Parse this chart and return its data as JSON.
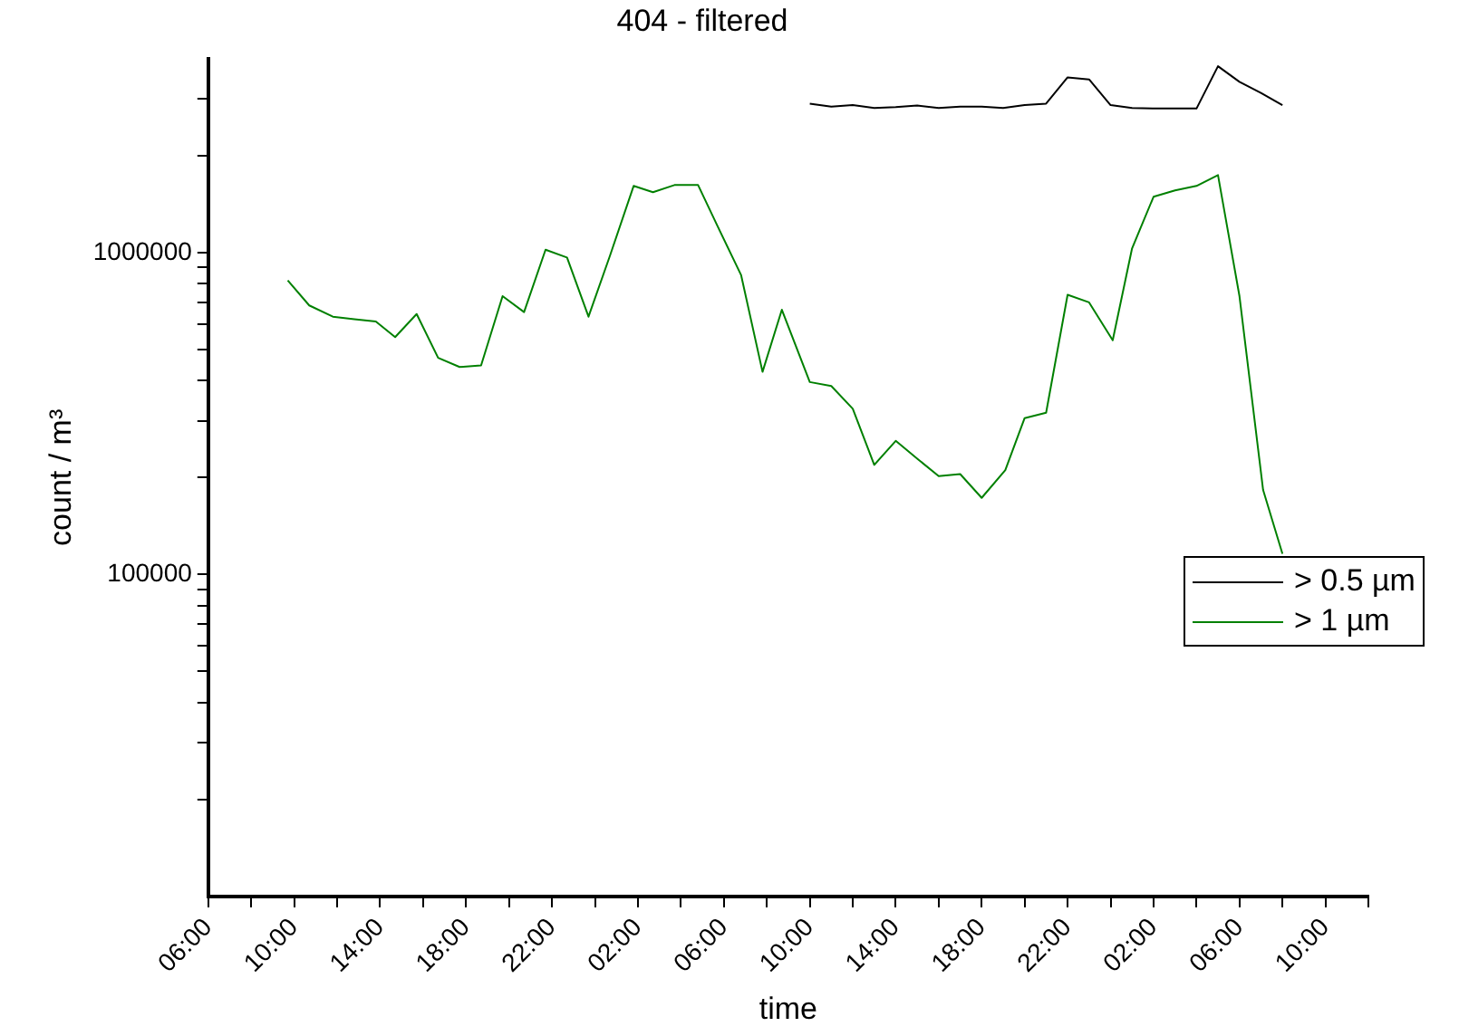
{
  "chart_data": {
    "type": "line",
    "title": "404 - filtered",
    "xlabel": "time",
    "ylabel": "count / m³",
    "log": "y",
    "grid": false,
    "legend": "right",
    "marker": "none",
    "line_style": "solid",
    "xlim": [
      "--01-01T06:00",
      "--01-03T12:00"
    ],
    "xticks": [
      {
        "value": "--01-01T06:00",
        "label": "06:00"
      },
      {
        "value": "--01-01T08:00",
        "label": null
      },
      {
        "value": "--01-01T10:00",
        "label": "10:00"
      },
      {
        "value": "--01-01T12:00",
        "label": null
      },
      {
        "value": "--01-01T14:00",
        "label": "14:00"
      },
      {
        "value": "--01-01T16:00",
        "label": null
      },
      {
        "value": "--01-01T18:00",
        "label": "18:00"
      },
      {
        "value": "--01-01T20:00",
        "label": null
      },
      {
        "value": "--01-01T22:00",
        "label": "22:00"
      },
      {
        "value": "--01-02T00:00",
        "label": null
      },
      {
        "value": "--01-02T02:00",
        "label": "02:00"
      },
      {
        "value": "--01-02T04:00",
        "label": null
      },
      {
        "value": "--01-02T06:00",
        "label": "06:00"
      },
      {
        "value": "--01-02T08:00",
        "label": null
      },
      {
        "value": "--01-02T10:00",
        "label": "10:00"
      },
      {
        "value": "--01-02T12:00",
        "label": null
      },
      {
        "value": "--01-02T14:00",
        "label": "14:00"
      },
      {
        "value": "--01-02T16:00",
        "label": null
      },
      {
        "value": "--01-02T18:00",
        "label": "18:00"
      },
      {
        "value": "--01-02T20:00",
        "label": null
      },
      {
        "value": "--01-02T22:00",
        "label": "22:00"
      },
      {
        "value": "--01-03T00:00",
        "label": null
      },
      {
        "value": "--01-03T02:00",
        "label": "02:00"
      },
      {
        "value": "--01-03T04:00",
        "label": null
      },
      {
        "value": "--01-03T06:00",
        "label": "06:00"
      },
      {
        "value": "--01-03T08:00",
        "label": null
      },
      {
        "value": "--01-03T10:00",
        "label": "10:00"
      },
      {
        "value": "--01-03T12:00",
        "label": null
      }
    ],
    "ylim": [
      10000,
      4000000
    ],
    "yticks": [
      {
        "value": 20000,
        "label": null
      },
      {
        "value": 30000,
        "label": null
      },
      {
        "value": 40000,
        "label": null
      },
      {
        "value": 50000,
        "label": null
      },
      {
        "value": 60000,
        "label": null
      },
      {
        "value": 70000,
        "label": null
      },
      {
        "value": 80000,
        "label": null
      },
      {
        "value": 90000,
        "label": null
      },
      100000,
      {
        "value": 200000,
        "label": null
      },
      {
        "value": 300000,
        "label": null
      },
      {
        "value": 400000,
        "label": null
      },
      {
        "value": 500000,
        "label": null
      },
      {
        "value": 600000,
        "label": null
      },
      {
        "value": 700000,
        "label": null
      },
      {
        "value": 800000,
        "label": null
      },
      {
        "value": 900000,
        "label": null
      },
      1000000,
      {
        "value": 2000000,
        "label": null
      },
      {
        "value": 3000000,
        "label": null
      }
    ],
    "series": [
      {
        "name": "> 0.5 µm",
        "color": "#000000",
        "x": [
          "--01-02T10:00",
          "--01-02T11:00",
          "--01-02T12:00",
          "--01-02T13:00",
          "--01-02T14:00",
          "--01-02T15:00",
          "--01-02T16:00",
          "--01-02T17:00",
          "--01-02T18:00",
          "--01-02T19:00",
          "--01-02T20:00",
          "--01-02T21:00",
          "--01-02T22:00",
          "--01-02T23:00",
          "--01-03T00:00",
          "--01-03T01:00",
          "--01-03T02:00",
          "--01-03T03:00",
          "--01-03T04:00",
          "--01-03T05:00",
          "--01-03T06:00",
          "--01-03T07:00",
          "--01-03T08:00"
        ],
        "values": [
          2900000,
          2840000,
          2870000,
          2810000,
          2830000,
          2860000,
          2810000,
          2840000,
          2840000,
          2810000,
          2870000,
          2900000,
          3500000,
          3450000,
          2870000,
          2810000,
          2800000,
          2800000,
          2800000,
          3790000,
          3390000,
          3130000,
          2870000
        ]
      },
      {
        "name": "> 1 µm",
        "color": "#008000",
        "x": [
          "--01-01T09:42",
          "--01-01T10:42",
          "--01-01T11:48",
          "--01-01T12:48",
          "--01-01T13:48",
          "--01-01T14:42",
          "--01-01T15:42",
          "--01-01T16:42",
          "--01-01T17:42",
          "--01-01T18:42",
          "--01-01T19:42",
          "--01-01T20:42",
          "--01-01T21:42",
          "--01-01T22:42",
          "--01-01T23:42",
          "--01-02T00:42",
          "--01-02T01:48",
          "--01-02T02:42",
          "--01-02T03:42",
          "--01-02T04:48",
          "--01-02T05:42",
          "--01-02T06:48",
          "--01-02T07:48",
          "--01-02T08:42",
          "--01-02T10:00",
          "--01-02T11:00",
          "--01-02T12:00",
          "--01-02T13:00",
          "--01-02T14:00",
          "--01-02T15:00",
          "--01-02T16:00",
          "--01-02T17:00",
          "--01-02T18:00",
          "--01-02T19:06",
          "--01-02T20:00",
          "--01-02T21:00",
          "--01-02T22:00",
          "--01-02T23:00",
          "--01-03T00:06",
          "--01-03T01:00",
          "--01-03T02:00",
          "--01-03T03:00",
          "--01-03T04:00",
          "--01-03T05:00",
          "--01-03T06:00",
          "--01-03T07:06",
          "--01-03T08:00"
        ],
        "values": [
          819000,
          685000,
          632000,
          621000,
          611000,
          546000,
          644000,
          471000,
          441000,
          446000,
          732000,
          653000,
          1020000,
          965000,
          632000,
          978000,
          1610000,
          1540000,
          1620000,
          1620000,
          1210000,
          852000,
          426000,
          664000,
          396000,
          385000,
          327000,
          219000,
          260000,
          229000,
          202000,
          205000,
          173000,
          211000,
          306000,
          318000,
          739000,
          700000,
          534000,
          1030000,
          1490000,
          1560000,
          1610000,
          1740000,
          732000,
          183000,
          116000
        ]
      }
    ]
  }
}
